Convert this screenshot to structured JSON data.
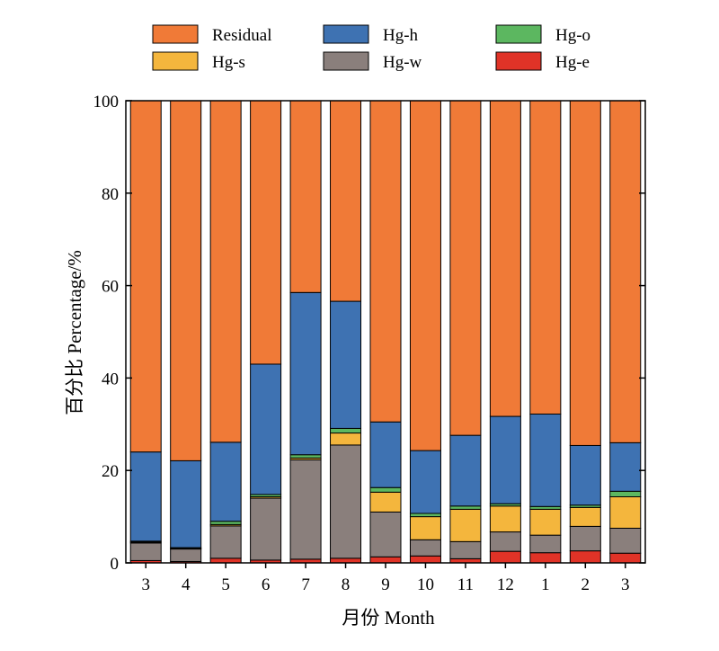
{
  "chart_data": {
    "type": "bar",
    "stacked": true,
    "xlabel": "月份 Month",
    "ylabel": "百分比 Percentage/%",
    "ylim": [
      0,
      100
    ],
    "yticks": [
      0,
      20,
      40,
      60,
      80,
      100
    ],
    "legend_position": "top",
    "categories": [
      "3",
      "4",
      "5",
      "6",
      "7",
      "8",
      "9",
      "10",
      "11",
      "12",
      "1",
      "2",
      "3"
    ],
    "series": [
      {
        "name": "Hg-e",
        "color": "#e03327",
        "values": [
          0.5,
          0.3,
          1.0,
          0.6,
          0.8,
          1.0,
          1.3,
          1.5,
          0.9,
          2.5,
          2.2,
          2.6,
          2.1
        ]
      },
      {
        "name": "Hg-w",
        "color": "#8a7f7c",
        "values": [
          3.8,
          2.7,
          7.0,
          13.4,
          21.5,
          24.5,
          9.7,
          3.5,
          3.7,
          4.2,
          3.8,
          5.3,
          5.4
        ]
      },
      {
        "name": "Hg-s",
        "color": "#f4b63d",
        "values": [
          0.2,
          0.1,
          0.3,
          0.3,
          0.4,
          2.6,
          4.3,
          5.0,
          7.0,
          5.6,
          5.6,
          4.1,
          6.8
        ]
      },
      {
        "name": "Hg-o",
        "color": "#5cb760",
        "values": [
          0.2,
          0.2,
          0.7,
          0.5,
          0.7,
          1.0,
          1.0,
          0.7,
          0.7,
          0.5,
          0.6,
          0.5,
          1.2
        ]
      },
      {
        "name": "Hg-h",
        "color": "#3e72b2",
        "values": [
          19.3,
          18.8,
          17.1,
          28.2,
          35.1,
          27.5,
          14.2,
          13.6,
          15.3,
          18.9,
          20.0,
          12.9,
          10.5
        ]
      },
      {
        "name": "Residual",
        "color": "#f07a37",
        "values": [
          76.0,
          77.9,
          73.9,
          57.0,
          41.5,
          43.4,
          69.5,
          75.7,
          72.4,
          68.3,
          67.8,
          74.6,
          74.0
        ]
      }
    ],
    "legend_order": [
      "Residual",
      "Hg-h",
      "Hg-o",
      "Hg-s",
      "Hg-w",
      "Hg-e"
    ]
  }
}
